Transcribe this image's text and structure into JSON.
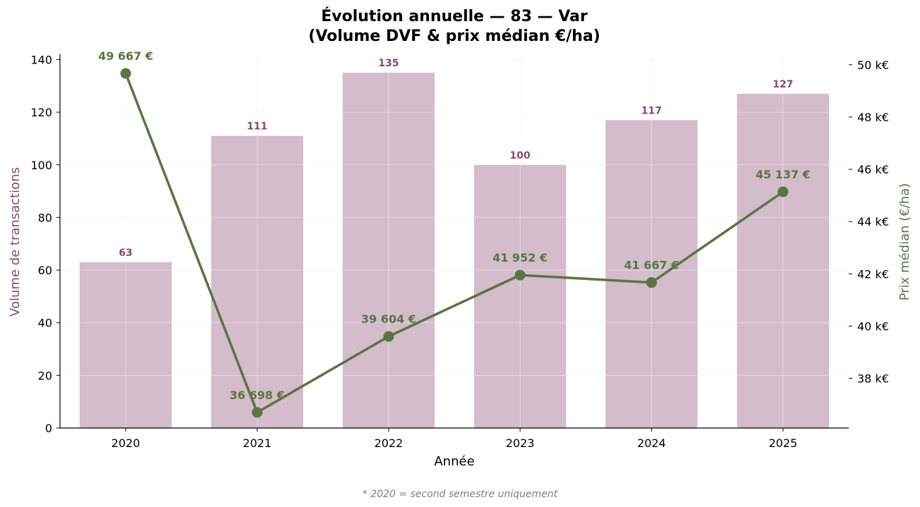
{
  "chart_data": {
    "type": "bar",
    "title_line1": "Évolution annuelle — 83 — Var",
    "title_line2": "(Volume DVF & prix médian €/ha)",
    "xlabel": "Année",
    "ylabel_left": "Volume de transactions",
    "ylabel_right": "Prix médian (€/ha)",
    "categories": [
      "2020",
      "2021",
      "2022",
      "2023",
      "2024",
      "2025"
    ],
    "series": [
      {
        "kind": "bar",
        "axis": "left",
        "values": [
          63,
          111,
          135,
          100,
          117,
          127
        ],
        "labels": [
          "63",
          "111",
          "135",
          "100",
          "117",
          "127"
        ]
      },
      {
        "kind": "line",
        "axis": "right",
        "values": [
          49667,
          36698,
          39604,
          41952,
          41667,
          45137
        ],
        "labels": [
          "49 667 €",
          "36 698 €",
          "39 604 €",
          "41 952 €",
          "41 667 €",
          "45 137 €"
        ]
      }
    ],
    "ylim_left": [
      0,
      142
    ],
    "yticks_left": [
      "0",
      "20",
      "40",
      "60",
      "80",
      "100",
      "120",
      "140"
    ],
    "ylim_right": [
      36100,
      50400
    ],
    "yticks_right": [
      "38 k€",
      "40 k€",
      "42 k€",
      "44 k€",
      "46 k€",
      "48 k€",
      "50 k€"
    ],
    "yticks_right_values": [
      38000,
      40000,
      42000,
      44000,
      46000,
      48000,
      50000
    ],
    "grid": true,
    "colors": {
      "bar": "#d4bccb",
      "bar_text": "#864a74",
      "line": "#5a7444",
      "left_axis_title": "#864a74",
      "right_axis_title": "#5a7444"
    }
  },
  "footnote": "* 2020 = second semestre uniquement"
}
